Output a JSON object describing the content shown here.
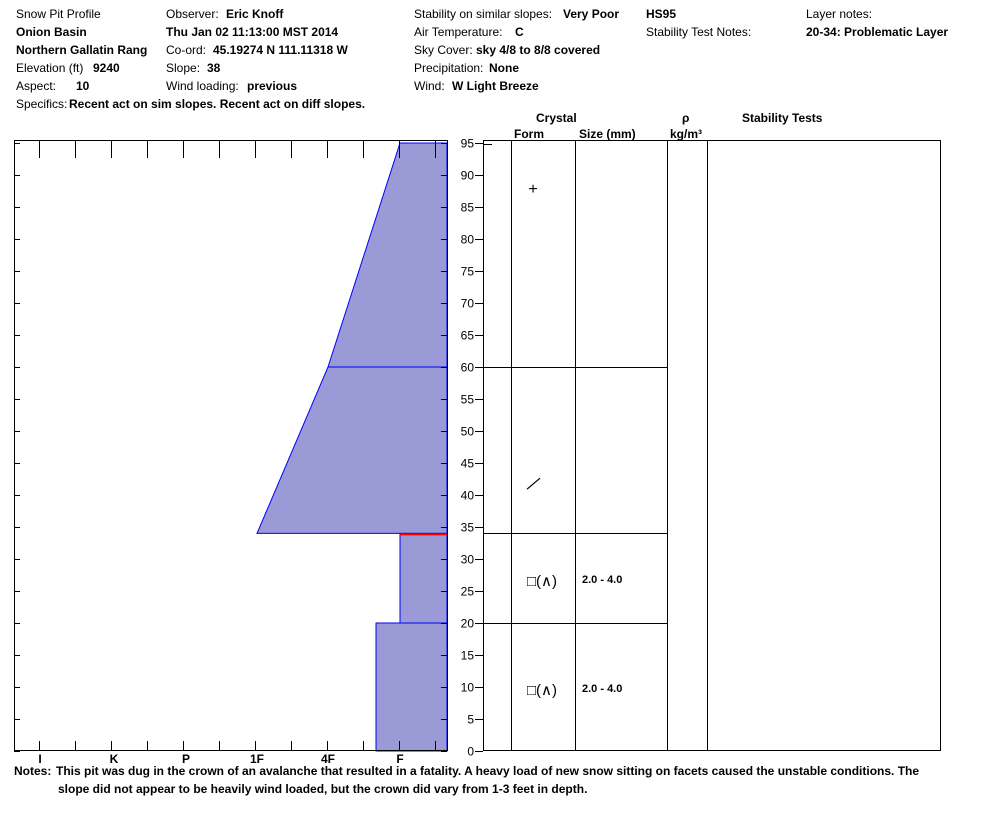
{
  "header": {
    "title": "Snow Pit Profile",
    "location": "Onion Basin",
    "range": "Northern Gallatin Rang",
    "elevation_label": "Elevation (ft)",
    "elevation": "9240",
    "aspect_label": "Aspect:",
    "aspect": "10",
    "specifics_label": "Specifics:",
    "specifics": "Recent act on sim slopes. Recent act on diff slopes.",
    "observer_label": "Observer:",
    "observer": "Eric Knoff",
    "datetime": "Thu Jan 02 11:13:00 MST 2014",
    "coord_label": "Co-ord:",
    "coord": "45.19274 N 111.11318 W",
    "slope_label": "Slope:",
    "slope": "38",
    "wind_loading_label": "Wind loading:",
    "wind_loading": "previous",
    "stability_label": "Stability on similar slopes:",
    "stability": "Very Poor",
    "air_temp_label": "Air Temperature:",
    "air_temp": "C",
    "sky_cover_label": "Sky Cover:",
    "sky_cover": "sky 4/8 to 8/8 covered",
    "precip_label": "Precipitation:",
    "precip": "None",
    "wind_label": "Wind:",
    "wind": "W Light Breeze",
    "hs": "HS95",
    "stability_test_notes_label": "Stability Test Notes:",
    "layer_notes_label": "Layer notes:",
    "layer_note": "20-34: Problematic Layer"
  },
  "columns": {
    "crystal": "Crystal",
    "form": "Form",
    "size": "Size (mm)",
    "rho": "ρ",
    "density_unit": "kg/m³",
    "stability_tests": "Stability Tests"
  },
  "chart_data": {
    "type": "area",
    "title": "",
    "xlabel": "",
    "ylabel": "",
    "hardness_ticks": [
      "I",
      "K",
      "P",
      "1F",
      "4F",
      "F"
    ],
    "height_ticks": [
      0,
      5,
      10,
      15,
      20,
      25,
      30,
      35,
      40,
      45,
      50,
      55,
      60,
      65,
      70,
      75,
      80,
      85,
      90,
      95
    ],
    "ylim": [
      0,
      95
    ],
    "hardness_profile": [
      {
        "bottom": 60,
        "top": 95,
        "hardness_at_bottom": "4F",
        "hardness_at_top": "F"
      },
      {
        "bottom": 34,
        "top": 60,
        "hardness_at_bottom": "1F",
        "hardness_at_top": "4F"
      },
      {
        "bottom": 20,
        "top": 34,
        "hardness": "F"
      },
      {
        "bottom": 0,
        "top": 20,
        "hardness": "F"
      }
    ],
    "problem_interface": 34,
    "layer_boundaries": [
      60,
      34,
      20
    ],
    "fill_color": "#9a9ad6",
    "edge_color": "#0000ff",
    "problem_color": "#ff0000"
  },
  "layers": [
    {
      "bottom": 60,
      "top": 95,
      "form_icon": "plus-icon",
      "form_symbol": "+",
      "size": ""
    },
    {
      "bottom": 34,
      "top": 60,
      "form_icon": "slash-icon",
      "form_symbol": "/",
      "size": ""
    },
    {
      "bottom": 20,
      "top": 34,
      "form_icon": "facet-icon",
      "form_symbol": "□(∧)",
      "size": "2.0 - 4.0"
    },
    {
      "bottom": 0,
      "top": 20,
      "form_icon": "facet-icon",
      "form_symbol": "□(∧)",
      "size": "2.0 - 4.0"
    }
  ],
  "notes": {
    "label": "Notes:",
    "line1": "This pit was dug in the crown of an avalanche that resulted in a fatality. A heavy load of new snow sitting on facets caused the unstable conditions. The",
    "line2": "slope did not appear to be heavily wind loaded, but the crown did vary from 1-3 feet in depth."
  }
}
